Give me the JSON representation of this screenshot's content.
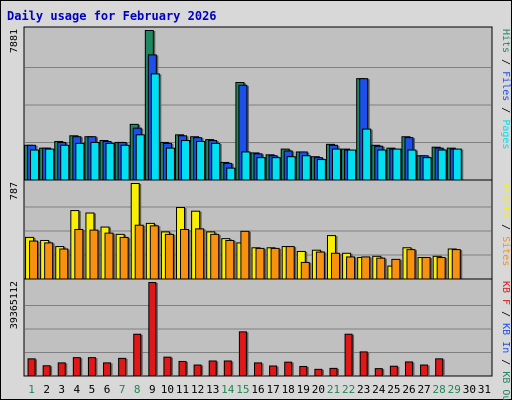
{
  "title": "Daily usage for February 2026",
  "colors": {
    "pages": "#00e0f0",
    "files": "#1c50e8",
    "hits": "#208860",
    "visits": "#f8f000",
    "sites": "#f89010",
    "kb": "#e01818",
    "plot_bg": "#c0c0c0",
    "frame_bg": "#d8d8d8",
    "title": "#0000c0",
    "weekend": "#208850",
    "grid": "#808080"
  },
  "chart_data": [
    {
      "type": "bar",
      "categories": [
        "1",
        "2",
        "3",
        "4",
        "5",
        "6",
        "7",
        "8",
        "9",
        "10",
        "11",
        "12",
        "13",
        "14",
        "15",
        "16",
        "17",
        "18",
        "19",
        "20",
        "21",
        "22",
        "23",
        "24",
        "25",
        "26",
        "27",
        "28",
        "29",
        "30",
        "31"
      ],
      "weekend_days": [
        "1",
        "7",
        "8",
        "14",
        "15",
        "21",
        "22",
        "28",
        "29"
      ],
      "ymax_label": "7881",
      "ylim": [
        0,
        7881
      ],
      "legend": [
        {
          "label": "Hits",
          "color_key": "hits"
        },
        {
          "label": "Files",
          "color_key": "files"
        },
        {
          "label": "Pages",
          "color_key": "pages"
        }
      ],
      "series": [
        {
          "key": "hits",
          "values": [
            1850,
            1700,
            2050,
            2350,
            2300,
            2100,
            2000,
            2950,
            7881,
            2000,
            2400,
            2300,
            2150,
            950,
            5150,
            1450,
            1350,
            1650,
            1500,
            1250,
            1900,
            1650,
            5350,
            1850,
            1700,
            2300,
            1300,
            1750,
            1700,
            0,
            0
          ]
        },
        {
          "key": "files",
          "values": [
            1850,
            1700,
            2000,
            2300,
            2300,
            2050,
            2000,
            2750,
            6600,
            1950,
            2350,
            2250,
            2100,
            900,
            5000,
            1400,
            1300,
            1550,
            1500,
            1200,
            1850,
            1600,
            5350,
            1800,
            1650,
            2250,
            1300,
            1700,
            1650,
            0,
            0
          ]
        },
        {
          "key": "pages",
          "values": [
            1600,
            1650,
            1850,
            1950,
            2000,
            1950,
            1850,
            2400,
            5600,
            1700,
            2100,
            2050,
            1950,
            650,
            1500,
            1200,
            1200,
            1250,
            1300,
            1100,
            1650,
            1600,
            2700,
            1600,
            1650,
            1600,
            1200,
            1600,
            1650,
            0,
            0
          ]
        }
      ]
    },
    {
      "type": "bar",
      "categories": [
        "1",
        "2",
        "3",
        "4",
        "5",
        "6",
        "7",
        "8",
        "9",
        "10",
        "11",
        "12",
        "13",
        "14",
        "15",
        "16",
        "17",
        "18",
        "19",
        "20",
        "21",
        "22",
        "23",
        "24",
        "25",
        "26",
        "27",
        "28",
        "29",
        "30",
        "31"
      ],
      "ymax_label": "787",
      "ylim": [
        0,
        787
      ],
      "legend": [
        {
          "label": "Visits",
          "color_key": "visits"
        },
        {
          "label": "Sites",
          "color_key": "sites"
        }
      ],
      "series": [
        {
          "key": "visits",
          "values": [
            345,
            320,
            270,
            565,
            545,
            430,
            370,
            787,
            460,
            390,
            590,
            560,
            390,
            335,
            300,
            260,
            260,
            270,
            230,
            240,
            360,
            215,
            180,
            190,
            110,
            260,
            180,
            190,
            250,
            0,
            0
          ]
        },
        {
          "key": "sites",
          "values": [
            315,
            300,
            250,
            410,
            405,
            380,
            345,
            445,
            440,
            370,
            410,
            415,
            370,
            320,
            395,
            255,
            255,
            270,
            140,
            225,
            215,
            185,
            185,
            175,
            165,
            245,
            180,
            180,
            245,
            0,
            0
          ]
        }
      ]
    },
    {
      "type": "bar",
      "categories": [
        "1",
        "2",
        "3",
        "4",
        "5",
        "6",
        "7",
        "8",
        "9",
        "10",
        "11",
        "12",
        "13",
        "14",
        "15",
        "16",
        "17",
        "18",
        "19",
        "20",
        "21",
        "22",
        "23",
        "24",
        "25",
        "26",
        "27",
        "28",
        "29",
        "30",
        "31"
      ],
      "ymax_label": "39365112",
      "ylim": [
        0,
        39365112
      ],
      "legend": [
        {
          "label": "KB F",
          "color_key": "kb"
        },
        {
          "label": "KB In",
          "color_key": "files"
        },
        {
          "label": "KB Out",
          "color_key": "hits"
        }
      ],
      "series": [
        {
          "key": "kb",
          "values": [
            7400000,
            4500000,
            5700000,
            7900000,
            7900000,
            5700000,
            7600000,
            17700000,
            39365112,
            8100000,
            6300000,
            4800000,
            6500000,
            6500000,
            18700000,
            5700000,
            4400000,
            6000000,
            4200000,
            3000000,
            3400000,
            17700000,
            10300000,
            3300000,
            4300000,
            6100000,
            4800000,
            7400000,
            0,
            0,
            0
          ]
        }
      ]
    }
  ]
}
